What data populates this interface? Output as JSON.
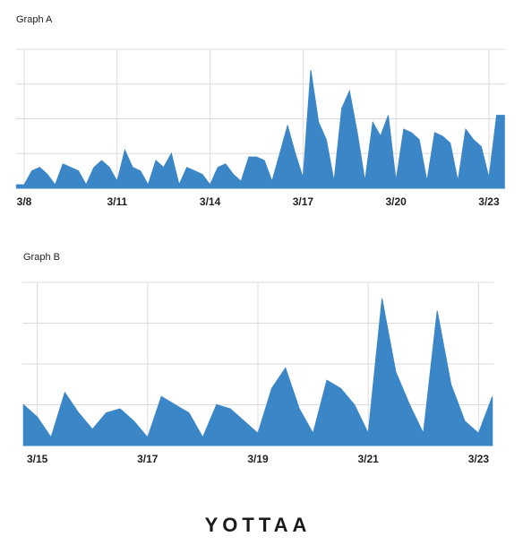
{
  "chart_data": [
    {
      "type": "area",
      "title": "Graph A",
      "color": "#3a86c6",
      "grid": true,
      "x": [
        7.75,
        8,
        8.25,
        8.5,
        8.75,
        9,
        9.25,
        9.5,
        9.75,
        10,
        10.25,
        10.5,
        10.75,
        11,
        11.25,
        11.5,
        11.75,
        12,
        12.25,
        12.5,
        12.75,
        13,
        13.25,
        13.5,
        13.75,
        14,
        14.25,
        14.5,
        14.75,
        15,
        15.25,
        15.5,
        15.75,
        16,
        16.25,
        16.5,
        16.75,
        17,
        17.25,
        17.5,
        17.75,
        18,
        18.25,
        18.5,
        18.75,
        19,
        19.25,
        19.5,
        19.75,
        20,
        20.25,
        20.5,
        20.75,
        21,
        21.25,
        21.5,
        21.75,
        22,
        22.25,
        22.5,
        22.75,
        23,
        23.25,
        23.5
      ],
      "values": [
        0.1,
        0.1,
        0.5,
        0.6,
        0.4,
        0.1,
        0.7,
        0.6,
        0.5,
        0.1,
        0.6,
        0.8,
        0.6,
        0.2,
        1.1,
        0.6,
        0.5,
        0.1,
        0.8,
        0.6,
        1.0,
        0.1,
        0.6,
        0.5,
        0.4,
        0.1,
        0.6,
        0.7,
        0.4,
        0.2,
        0.9,
        0.9,
        0.8,
        0.2,
        1.0,
        1.8,
        1.0,
        0.3,
        3.4,
        1.9,
        1.4,
        0.2,
        2.3,
        2.8,
        1.6,
        0.2,
        1.9,
        1.5,
        2.1,
        0.2,
        1.7,
        1.6,
        1.4,
        0.2,
        1.6,
        1.5,
        1.3,
        0.2,
        1.7,
        1.4,
        1.2,
        0.3,
        2.1,
        2.1
      ],
      "xlim": [
        7.74,
        23.55
      ],
      "ylim": [
        0,
        4
      ],
      "yticks": [
        0,
        1,
        2,
        3,
        4
      ],
      "xticks": [
        {
          "value": 8,
          "label": "3/8"
        },
        {
          "value": 11,
          "label": "3/11"
        },
        {
          "value": 14,
          "label": "3/14"
        },
        {
          "value": 17,
          "label": "3/17"
        },
        {
          "value": 20,
          "label": "3/20"
        },
        {
          "value": 23,
          "label": "3/23"
        }
      ]
    },
    {
      "type": "area",
      "title": "Graph B",
      "color": "#3a86c6",
      "grid": true,
      "x": [
        14.75,
        15,
        15.25,
        15.5,
        15.75,
        16,
        16.25,
        16.5,
        16.75,
        17,
        17.25,
        17.5,
        17.75,
        18,
        18.25,
        18.5,
        18.75,
        19,
        19.25,
        19.5,
        19.75,
        20,
        20.25,
        20.5,
        20.75,
        21,
        21.25,
        21.5,
        21.75,
        22,
        22.25,
        22.5,
        22.75,
        23,
        23.25
      ],
      "values": [
        1.0,
        0.7,
        0.2,
        1.3,
        0.8,
        0.4,
        0.8,
        0.9,
        0.6,
        0.2,
        1.2,
        1.0,
        0.8,
        0.2,
        1.0,
        0.9,
        0.6,
        0.3,
        1.4,
        1.9,
        0.9,
        0.3,
        1.6,
        1.4,
        1.0,
        0.3,
        3.6,
        1.8,
        1.0,
        0.3,
        3.3,
        1.5,
        0.6,
        0.3,
        1.2
      ],
      "xlim": [
        14.73,
        23.27
      ],
      "ylim": [
        0,
        4
      ],
      "yticks": [
        0,
        1,
        2,
        3,
        4
      ],
      "xticks": [
        {
          "value": 15,
          "label": "3/15"
        },
        {
          "value": 17,
          "label": "3/17"
        },
        {
          "value": 19,
          "label": "3/19"
        },
        {
          "value": 21,
          "label": "3/21"
        },
        {
          "value": 23,
          "label": "3/23"
        }
      ]
    }
  ],
  "logo": "YOTTAA"
}
